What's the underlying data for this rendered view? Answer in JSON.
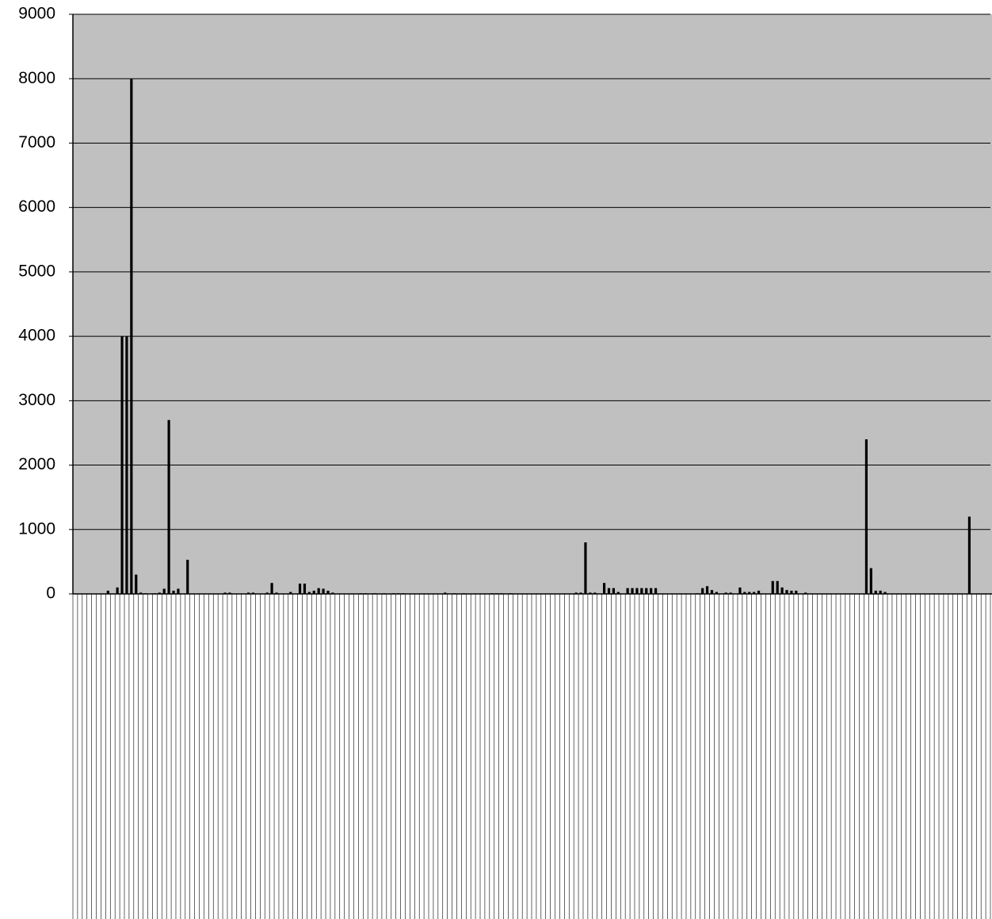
{
  "chart_data": {
    "type": "bar",
    "categories": [
      null,
      null,
      null,
      null,
      null,
      null,
      null,
      null,
      null,
      null,
      null,
      null,
      null,
      null,
      null,
      null,
      null,
      null,
      null,
      null,
      null,
      null,
      null,
      null,
      null,
      null,
      null,
      null,
      null,
      null,
      null,
      null,
      null,
      null,
      null,
      null,
      null,
      null,
      null,
      null,
      null,
      null,
      null,
      null,
      null,
      null,
      null,
      null,
      null,
      null,
      null,
      null,
      null,
      null,
      null,
      null,
      null,
      null,
      null,
      null,
      null,
      null,
      null,
      null,
      null,
      null,
      null,
      null,
      null,
      null,
      null,
      null,
      null,
      null,
      null,
      null,
      null,
      null,
      null,
      null,
      null,
      null,
      null,
      null,
      null,
      null,
      null,
      null,
      null,
      null,
      null,
      null,
      null,
      null,
      null,
      null,
      null,
      null,
      null,
      null,
      null,
      null,
      null,
      null,
      null,
      null,
      null,
      null,
      null,
      null,
      null,
      null,
      null,
      null,
      null,
      null,
      null,
      null,
      null,
      null,
      null,
      null,
      null,
      null,
      null,
      null,
      null,
      null,
      null,
      null,
      null,
      null,
      null,
      null,
      null,
      null,
      null,
      null,
      null,
      null,
      null,
      null,
      null,
      null,
      null,
      null,
      null,
      null,
      null,
      null,
      null,
      null,
      null,
      null,
      null,
      null,
      null,
      null,
      null,
      null,
      null,
      null,
      null,
      null,
      null,
      null,
      null,
      null,
      null,
      null,
      null,
      null,
      null,
      null,
      null,
      null,
      null,
      null,
      null,
      null,
      null,
      null,
      null,
      null,
      null,
      null,
      null,
      null,
      null,
      null,
      null,
      null,
      null,
      null,
      null,
      null
    ],
    "values": [
      0,
      0,
      0,
      0,
      0,
      0,
      0,
      50,
      0,
      100,
      4000,
      4000,
      8000,
      300,
      20,
      10,
      0,
      10,
      20,
      80,
      2700,
      50,
      80,
      0,
      530,
      0,
      0,
      0,
      0,
      0,
      0,
      0,
      20,
      20,
      0,
      0,
      0,
      20,
      20,
      0,
      0,
      20,
      170,
      20,
      0,
      0,
      30,
      0,
      160,
      160,
      30,
      50,
      90,
      80,
      50,
      20,
      0,
      0,
      0,
      0,
      0,
      10,
      10,
      0,
      10,
      0,
      10,
      0,
      10,
      10,
      10,
      0,
      0,
      0,
      0,
      0,
      0,
      0,
      0,
      20,
      0,
      10,
      0,
      10,
      0,
      0,
      0,
      0,
      0,
      10,
      10,
      10,
      0,
      10,
      0,
      0,
      0,
      0,
      0,
      0,
      0,
      0,
      0,
      0,
      0,
      0,
      0,
      20,
      20,
      800,
      20,
      20,
      0,
      170,
      90,
      90,
      30,
      0,
      90,
      90,
      90,
      90,
      90,
      90,
      90,
      0,
      0,
      0,
      0,
      0,
      0,
      0,
      0,
      10,
      90,
      120,
      60,
      30,
      0,
      20,
      20,
      0,
      100,
      30,
      30,
      30,
      50,
      0,
      0,
      200,
      200,
      100,
      60,
      50,
      50,
      0,
      20,
      0,
      0,
      0,
      0,
      0,
      0,
      0,
      0,
      0,
      0,
      0,
      0,
      2400,
      400,
      50,
      50,
      30,
      0,
      0,
      0,
      0,
      0,
      0,
      0,
      0,
      0,
      0,
      0,
      0,
      0,
      0,
      0,
      0,
      0,
      1200,
      0,
      0,
      0,
      0
    ],
    "color": "#000000",
    "ylim": [
      0,
      9000
    ],
    "yticks": [
      0,
      1000,
      2000,
      3000,
      4000,
      5000,
      6000,
      7000,
      8000,
      9000
    ],
    "grid": true
  }
}
